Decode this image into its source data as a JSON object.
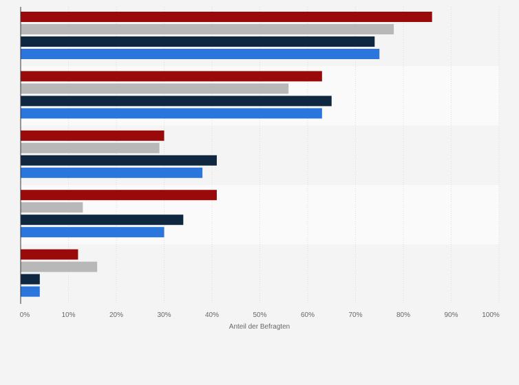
{
  "chart_data": {
    "type": "bar",
    "orientation": "horizontal",
    "categories": [
      "",
      "",
      "",
      "",
      ""
    ],
    "series": [
      {
        "color": "#9b0a0a",
        "values": [
          86,
          63,
          30,
          41,
          12
        ]
      },
      {
        "color": "#b8b8b8",
        "values": [
          78,
          56,
          29,
          13,
          16
        ]
      },
      {
        "color": "#0f2740",
        "values": [
          74,
          65,
          41,
          34,
          4
        ]
      },
      {
        "color": "#2a76dd",
        "values": [
          75,
          63,
          38,
          30,
          4
        ]
      }
    ],
    "title": "",
    "xlabel": "Anteil der Befragten",
    "ylabel": "",
    "xlim": [
      0,
      100
    ],
    "ticks": [
      "0%",
      "10%",
      "20%",
      "30%",
      "40%",
      "50%",
      "60%",
      "70%",
      "80%",
      "90%",
      "100%"
    ],
    "grid": true,
    "legend": "none"
  }
}
